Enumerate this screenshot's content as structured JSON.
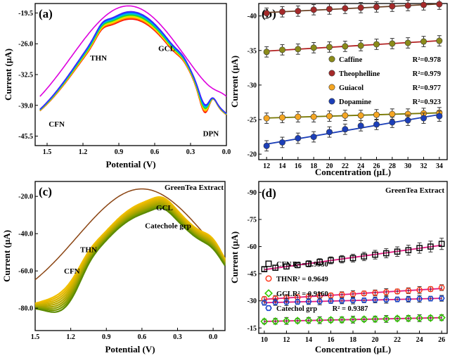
{
  "chart_data": [
    {
      "panel": "(a)",
      "type": "line",
      "xlabel": "Potential (V)",
      "ylabel": "Current (µA)",
      "xlim": [
        1.6,
        0.0
      ],
      "ylim": [
        -47.5,
        -17.5
      ],
      "x_ticks": [
        "1.5",
        "1.2",
        "0.9",
        "0.6",
        "0.3",
        "0.0"
      ],
      "y_ticks": [
        "-19.5",
        "-26.0",
        "-32.5",
        "-39.0",
        "-45.5"
      ],
      "annotations": [
        {
          "text": "CFN",
          "x": 1.42,
          "y": -43.5
        },
        {
          "text": "THN",
          "x": 1.07,
          "y": -29.5
        },
        {
          "text": "GCL",
          "x": 0.5,
          "y": -27.5
        },
        {
          "text": "DPN",
          "x": 0.13,
          "y": -45.5
        }
      ],
      "curve_count": 12,
      "curve_colors": [
        "#ff0000",
        "#ff5500",
        "#ff9900",
        "#ffdd00",
        "#ccee00",
        "#55dd00",
        "#00cc66",
        "#00cccc",
        "#0099ff",
        "#0055ff",
        "#4422ff",
        "#dd00dd"
      ]
    },
    {
      "panel": "(b)",
      "type": "scatter",
      "xlabel": "Concentration (µL)",
      "ylabel": "Current (µA)",
      "xlim": [
        11,
        35
      ],
      "ylim": [
        -19.2,
        -41.8
      ],
      "x_ticks": [
        "12",
        "14",
        "16",
        "18",
        "20",
        "22",
        "24",
        "26",
        "28",
        "30",
        "32",
        "34"
      ],
      "y_ticks": [
        "-40",
        "-35",
        "-30",
        "-25",
        "-20"
      ],
      "x": [
        12,
        14,
        16,
        18,
        20,
        22,
        24,
        26,
        28,
        30,
        32,
        34
      ],
      "series": [
        {
          "name": "Caffine",
          "r2": "R²=0.978",
          "color": "#8b8b1a",
          "fit_color": "#b22222",
          "values": [
            -34.8,
            -35.1,
            -35.2,
            -35.4,
            -35.5,
            -35.6,
            -35.7,
            -35.9,
            -36.0,
            -36.1,
            -36.3,
            -36.4
          ]
        },
        {
          "name": "Theophelline",
          "r2": "R²=0.979",
          "color": "#a52a2a",
          "fit_color": "#6b4226",
          "values": [
            -40.4,
            -40.6,
            -40.7,
            -40.9,
            -41.0,
            -41.1,
            -41.2,
            -41.3,
            -41.4,
            -41.5,
            -41.6,
            -41.7
          ]
        },
        {
          "name": "Guiacol",
          "r2": "R²=0.977",
          "color": "#f5a623",
          "fit_color": "#777700",
          "values": [
            -25.2,
            -25.3,
            -25.4,
            -25.4,
            -25.5,
            -25.6,
            -25.6,
            -25.7,
            -25.8,
            -25.8,
            -25.9,
            -26.0
          ]
        },
        {
          "name": "Dopamine",
          "r2": "R²=0.923",
          "color": "#1c3fb8",
          "fit_color": "#1c3fb8",
          "values": [
            -21.2,
            -21.7,
            -22.3,
            -22.5,
            -23.2,
            -23.6,
            -24.1,
            -24.3,
            -24.6,
            -24.9,
            -25.2,
            -25.5
          ]
        }
      ]
    },
    {
      "panel": "(c)",
      "type": "line",
      "title": "GreenTea Extract",
      "xlabel": "Potential (V)",
      "ylabel": "Current (µA)",
      "xlim": [
        1.5,
        -0.1
      ],
      "ylim": [
        -92,
        -12
      ],
      "x_ticks": [
        "1.5",
        "1.2",
        "0.9",
        "0.6",
        "0.3",
        "0.0"
      ],
      "y_ticks": [
        "-20.0",
        "-40.0",
        "-60.0",
        "-80.0"
      ],
      "annotations": [
        {
          "text": "CFN",
          "x": 1.19,
          "y": -61.5
        },
        {
          "text": "THN",
          "x": 1.05,
          "y": -50.0
        },
        {
          "text": "GCL",
          "x": 0.41,
          "y": -27.5
        },
        {
          "text": "Catechole grp",
          "x": 0.38,
          "y": -37.0
        }
      ],
      "curve_count": 10,
      "curve_colors": [
        "#8b4513",
        "#f0c000",
        "#e8b800",
        "#d8b400",
        "#c8b000",
        "#b8aa00",
        "#a8a400",
        "#90a000",
        "#7a9a00",
        "#5c8a00"
      ]
    },
    {
      "panel": "(d)",
      "type": "scatter",
      "title": "GreenTea Extract",
      "xlabel": "Concentration (µL)",
      "ylabel": "Current (µA)",
      "xlim": [
        9.5,
        26.5
      ],
      "ylim": [
        -12,
        -96
      ],
      "x_ticks": [
        "10",
        "12",
        "14",
        "16",
        "18",
        "20",
        "22",
        "24",
        "26"
      ],
      "y_ticks": [
        "-15",
        "-30",
        "-45",
        "-60",
        "-75",
        "-90"
      ],
      "x": [
        10,
        11,
        12,
        13,
        14,
        15,
        16,
        17,
        18,
        19,
        20,
        21,
        22,
        23,
        24,
        25,
        26
      ],
      "series": [
        {
          "name": "CFN",
          "r2": "R² = 0.9930",
          "marker": "square",
          "color": "#000000",
          "fit_color": "#e0197e",
          "values": [
            -47.5,
            -48.3,
            -49.0,
            -49.8,
            -50.5,
            -51.5,
            -52.4,
            -53.0,
            -53.6,
            -54.5,
            -55.5,
            -56.3,
            -57.2,
            -58.0,
            -59.2,
            -60.0,
            -61.5
          ]
        },
        {
          "name": "THN",
          "r2": "R² = 0.9649",
          "marker": "circle",
          "color": "#ff3b1f",
          "fit_color": "#e0197e",
          "values": [
            -31.0,
            -31.3,
            -31.6,
            -32.0,
            -32.3,
            -32.7,
            -33.0,
            -33.4,
            -33.7,
            -34.1,
            -34.4,
            -34.8,
            -35.2,
            -35.6,
            -36.0,
            -36.5,
            -37.3
          ]
        },
        {
          "name": "GCL",
          "r2": "R² = 0.9160",
          "marker": "diamond",
          "color": "#33cc00",
          "fit_color": "#e0197e",
          "values": [
            -18.6,
            -18.7,
            -18.9,
            -19.0,
            -19.2,
            -19.3,
            -19.4,
            -19.5,
            -19.6,
            -19.8,
            -19.9,
            -20.0,
            -20.2,
            -20.3,
            -20.4,
            -20.5,
            -20.7
          ]
        },
        {
          "name": "Catechol grp",
          "r2": "R² = 0.9387",
          "marker": "hexagon",
          "color": "#1a44cc",
          "fit_color": "#e0197e",
          "values": [
            -28.9,
            -29.1,
            -29.3,
            -29.4,
            -29.6,
            -29.7,
            -29.9,
            -30.0,
            -30.2,
            -30.3,
            -30.5,
            -30.6,
            -30.8,
            -30.9,
            -31.1,
            -31.2,
            -31.4
          ]
        }
      ]
    }
  ]
}
